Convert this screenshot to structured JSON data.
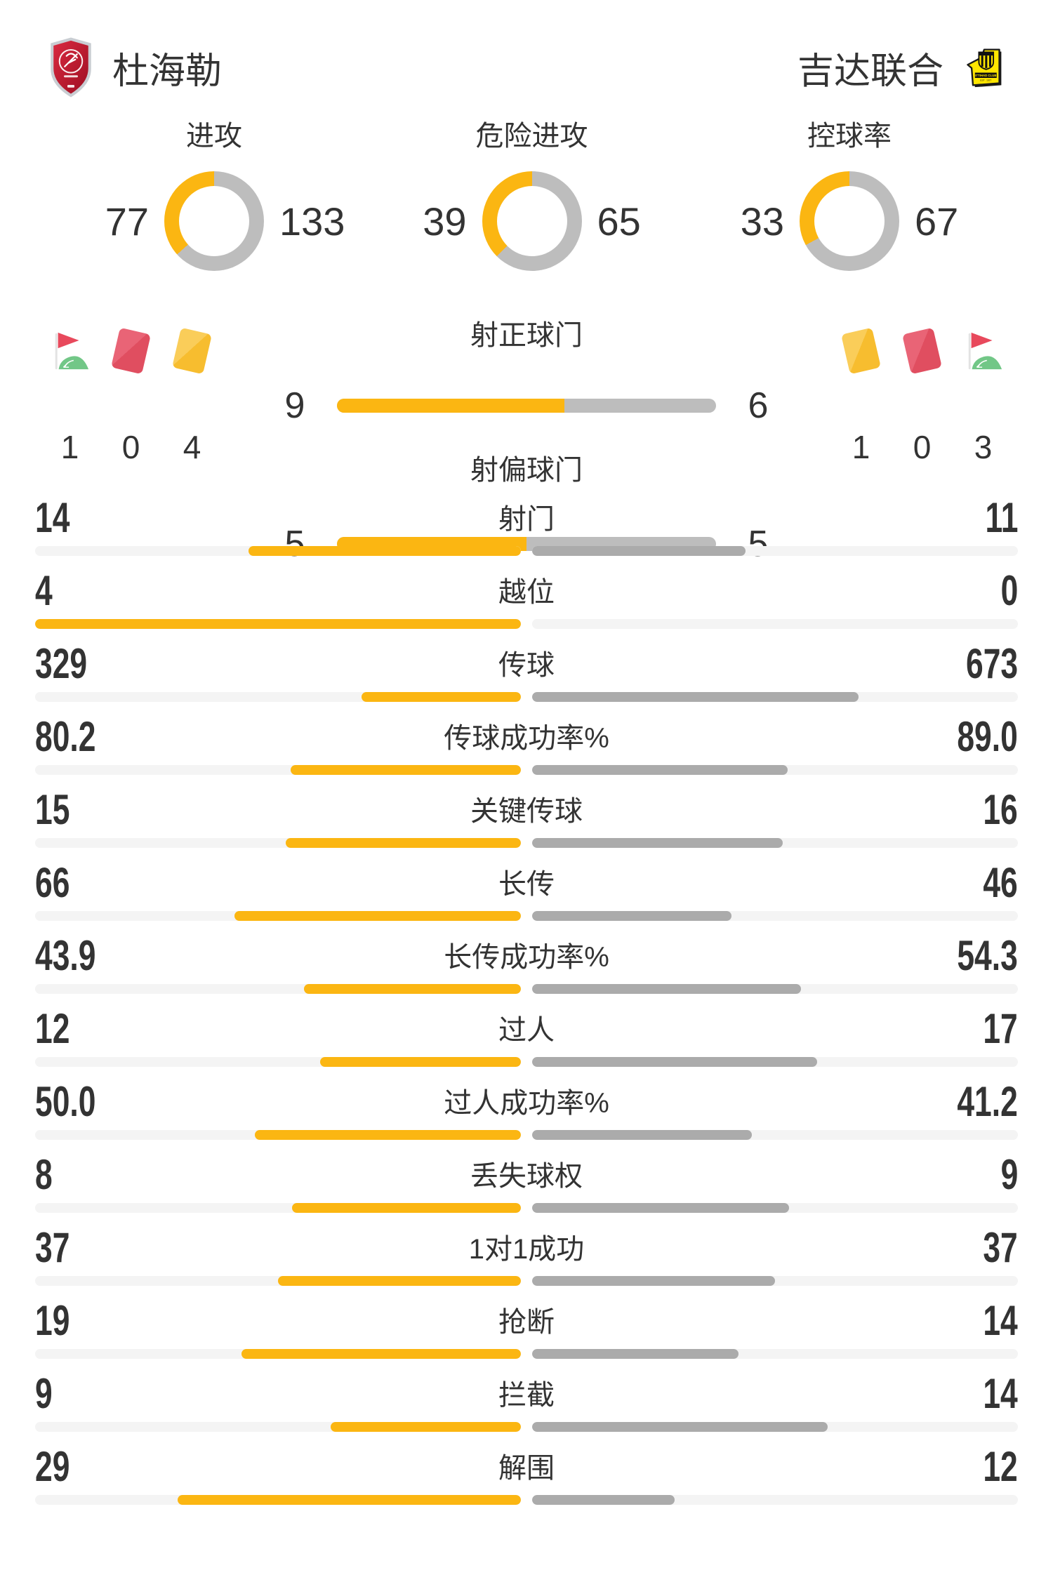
{
  "teams": {
    "home": {
      "name": "杜海勒"
    },
    "away": {
      "name": "吉达联合"
    }
  },
  "overview": {
    "donuts": [
      {
        "label": "进攻",
        "home": 77,
        "away": 133
      },
      {
        "label": "危险进攻",
        "home": 39,
        "away": 65
      },
      {
        "label": "控球率",
        "home": 33,
        "away": 67
      }
    ]
  },
  "shots": [
    {
      "label": "射正球门",
      "home": 9,
      "away": 6
    },
    {
      "label": "射偏球门",
      "home": 5,
      "away": 5
    }
  ],
  "discipline": {
    "home": [
      {
        "icon": "corner-flag-icon",
        "value": "1"
      },
      {
        "icon": "red-card-icon",
        "value": "0"
      },
      {
        "icon": "yellow-card-icon",
        "value": "4"
      }
    ],
    "away": [
      {
        "icon": "yellow-card-icon",
        "value": "1"
      },
      {
        "icon": "red-card-icon",
        "value": "0"
      },
      {
        "icon": "corner-flag-icon",
        "value": "3"
      }
    ]
  },
  "stats": [
    {
      "label": "射门",
      "home": "14",
      "away": "11"
    },
    {
      "label": "越位",
      "home": "4",
      "away": "0"
    },
    {
      "label": "传球",
      "home": "329",
      "away": "673"
    },
    {
      "label": "传球成功率%",
      "home": "80.2",
      "away": "89.0"
    },
    {
      "label": "关键传球",
      "home": "15",
      "away": "16"
    },
    {
      "label": "长传",
      "home": "66",
      "away": "46"
    },
    {
      "label": "长传成功率%",
      "home": "43.9",
      "away": "54.3"
    },
    {
      "label": "过人",
      "home": "12",
      "away": "17"
    },
    {
      "label": "过人成功率%",
      "home": "50.0",
      "away": "41.2"
    },
    {
      "label": "丢失球权",
      "home": "8",
      "away": "9"
    },
    {
      "label": "1对1成功",
      "home": "37",
      "away": "37"
    },
    {
      "label": "抢断",
      "home": "19",
      "away": "14"
    },
    {
      "label": "拦截",
      "home": "9",
      "away": "14"
    },
    {
      "label": "解围",
      "home": "29",
      "away": "12"
    }
  ],
  "colors": {
    "home_fill": "#FBB612",
    "away_fill": "#ABABAB",
    "shots_away_fill": "#BDBDBD",
    "donut_away": "#BDBDBD",
    "track": "#F4F4F4",
    "text": "#333333",
    "red_card": "#E25163",
    "yellow_card": "#F8C13A",
    "flag_red": "#E8495C",
    "flag_green": "#72C787"
  }
}
